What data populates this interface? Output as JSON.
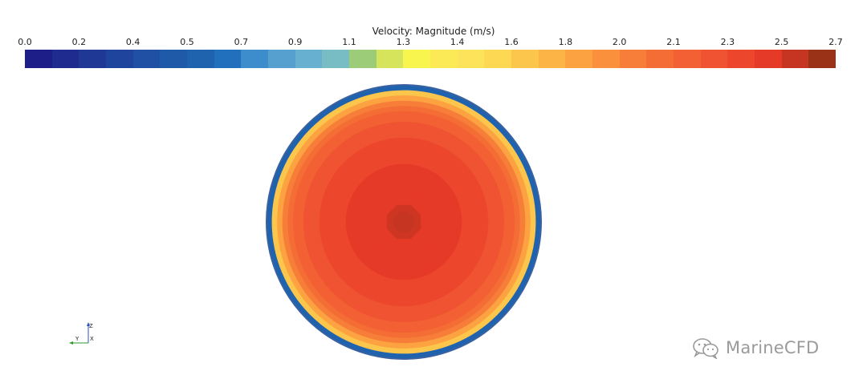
{
  "legend": {
    "title": "Velocity: Magnitude (m/s)",
    "ticks": [
      "0.0",
      "0.2",
      "0.4",
      "0.5",
      "0.7",
      "0.9",
      "1.1",
      "1.3",
      "1.4",
      "1.6",
      "1.8",
      "2.0",
      "2.1",
      "2.3",
      "2.5",
      "2.7"
    ],
    "min": 0.0,
    "max": 2.7,
    "colors": [
      "#1e1e88",
      "#1f2b8f",
      "#1f3896",
      "#1f449d",
      "#1f50a3",
      "#1f5aa8",
      "#1f62ad",
      "#2170bd",
      "#3d8ccc",
      "#55a0cf",
      "#68b0cf",
      "#78bcc4",
      "#9ccc78",
      "#d6e45c",
      "#f8f64e",
      "#fbea55",
      "#fde35a",
      "#fdd853",
      "#fcc54b",
      "#fcb446",
      "#fca241",
      "#fa8f3c",
      "#f77e39",
      "#f46d35",
      "#f26033",
      "#ef5331",
      "#ec462d",
      "#e63a28",
      "#c53521",
      "#9a3218"
    ]
  },
  "contour": {
    "boundary_value": 0.6,
    "center_value": 2.55,
    "outline_color": "#3a62a0"
  },
  "axes": {
    "z_label": "Z",
    "y_label": "Y",
    "x_label": "X",
    "z_color": "#2a52c8",
    "y_color": "#2c9a2c"
  },
  "watermark": {
    "text": "MarineCFD",
    "icon": "wechat-icon"
  }
}
